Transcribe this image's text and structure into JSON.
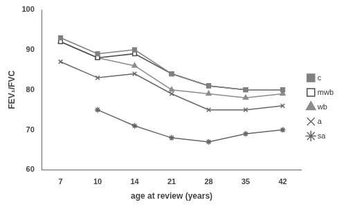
{
  "chart_data": {
    "type": "line",
    "x_label": "age at review (years)",
    "y_label": "FEV₁/FVC",
    "categories": [
      "7",
      "10",
      "14",
      "21",
      "28",
      "35",
      "42"
    ],
    "series": [
      {
        "name": "c",
        "color": "#808080",
        "marker": "square",
        "values": [
          93,
          89,
          90,
          84,
          81,
          80,
          80
        ]
      },
      {
        "name": "mwb",
        "color": "#4d4d4d",
        "marker": "open_square",
        "values": [
          92,
          88,
          89,
          84,
          81,
          80,
          80
        ]
      },
      {
        "name": "wb",
        "color": "#8c8c8c",
        "marker": "triangle",
        "values": [
          92,
          88,
          86,
          80,
          79,
          78,
          79
        ]
      },
      {
        "name": "a",
        "color": "#666666",
        "marker": "cross",
        "values": [
          87,
          83,
          84,
          79,
          75,
          75,
          76
        ]
      },
      {
        "name": "sa",
        "color": "#666666",
        "marker": "star",
        "values": [
          null,
          75,
          71,
          68,
          67,
          69,
          70
        ]
      }
    ],
    "ylim": [
      60,
      100
    ],
    "yticks": [
      60,
      70,
      80,
      90,
      100
    ],
    "grid": false,
    "legend": "right"
  }
}
